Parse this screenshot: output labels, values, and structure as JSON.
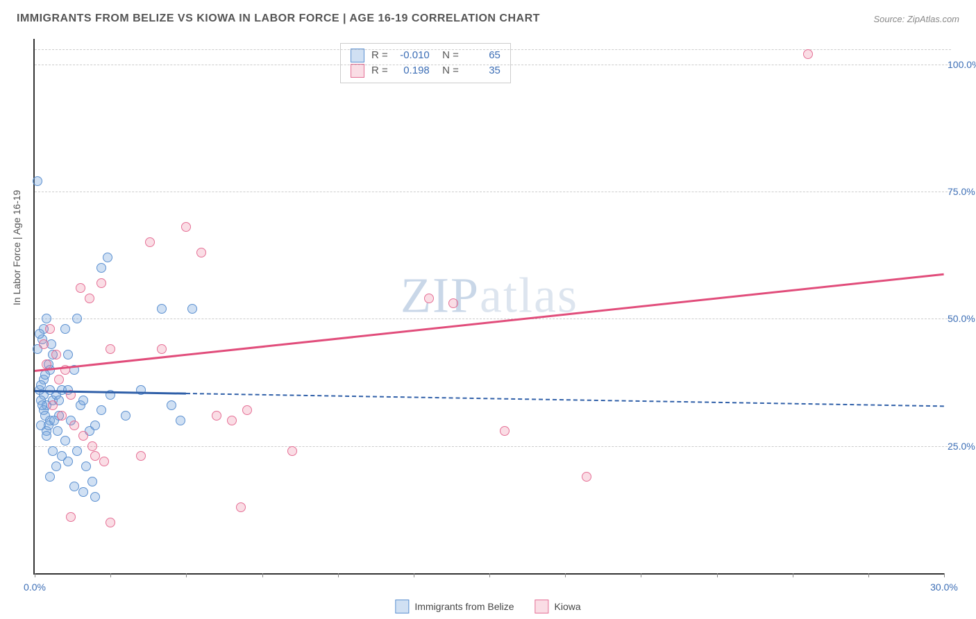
{
  "header": {
    "title": "IMMIGRANTS FROM BELIZE VS KIOWA IN LABOR FORCE | AGE 16-19 CORRELATION CHART",
    "source": "Source: ZipAtlas.com"
  },
  "watermark": {
    "prefix": "ZIP",
    "suffix": "atlas"
  },
  "chart": {
    "type": "scatter",
    "ylabel": "In Labor Force | Age 16-19",
    "background_color": "#ffffff",
    "grid_color": "#cccccc",
    "axis_color": "#333333",
    "label_color": "#3b6db5",
    "xlim": [
      0,
      30
    ],
    "ylim": [
      0,
      105
    ],
    "xticks": [
      0,
      2.5,
      5,
      7.5,
      10,
      12.5,
      15,
      17.5,
      20,
      22.5,
      25,
      27.5,
      30
    ],
    "xtick_labels": {
      "0": "0.0%",
      "30": "30.0%"
    },
    "yticks": [
      25,
      50,
      75,
      100
    ],
    "ytick_labels": {
      "25": "25.0%",
      "50": "50.0%",
      "75": "75.0%",
      "100": "100.0%"
    },
    "marker_radius": 7,
    "marker_border": 1.5,
    "series": [
      {
        "name": "Immigrants from Belize",
        "key": "blue",
        "fill": "rgba(120,165,220,0.35)",
        "stroke": "#5a8fd0",
        "R": "-0.010",
        "N": "65",
        "trend": {
          "x1": 0,
          "y1": 36,
          "x2_solid": 5,
          "x2_dash": 30,
          "y2": 33,
          "color": "#2f5fa8"
        },
        "points": [
          [
            0.1,
            77
          ],
          [
            0.3,
            35
          ],
          [
            0.2,
            34
          ],
          [
            0.4,
            33
          ],
          [
            0.15,
            36
          ],
          [
            0.3,
            32
          ],
          [
            0.5,
            30
          ],
          [
            0.2,
            29
          ],
          [
            0.4,
            28
          ],
          [
            0.6,
            34
          ],
          [
            0.1,
            44
          ],
          [
            0.25,
            46
          ],
          [
            0.5,
            40
          ],
          [
            0.3,
            38
          ],
          [
            0.7,
            35
          ],
          [
            0.8,
            31
          ],
          [
            0.4,
            27
          ],
          [
            0.6,
            24
          ],
          [
            0.9,
            23
          ],
          [
            1.1,
            22
          ],
          [
            0.7,
            21
          ],
          [
            0.5,
            19
          ],
          [
            1.3,
            17
          ],
          [
            1.6,
            16
          ],
          [
            2.0,
            15
          ],
          [
            1.2,
            30
          ],
          [
            1.5,
            33
          ],
          [
            1.8,
            28
          ],
          [
            2.2,
            32
          ],
          [
            1.0,
            48
          ],
          [
            1.4,
            50
          ],
          [
            1.1,
            43
          ],
          [
            1.3,
            40
          ],
          [
            2.5,
            35
          ],
          [
            3.0,
            31
          ],
          [
            2.2,
            60
          ],
          [
            2.4,
            62
          ],
          [
            4.8,
            30
          ],
          [
            4.5,
            33
          ],
          [
            4.2,
            52
          ],
          [
            5.2,
            52
          ],
          [
            3.5,
            36
          ],
          [
            0.2,
            37
          ],
          [
            0.35,
            39
          ],
          [
            0.45,
            41
          ],
          [
            0.55,
            45
          ],
          [
            0.3,
            48
          ],
          [
            0.4,
            50
          ],
          [
            0.15,
            47
          ],
          [
            0.6,
            43
          ],
          [
            0.5,
            36
          ],
          [
            0.8,
            34
          ],
          [
            0.9,
            36
          ],
          [
            0.25,
            33
          ],
          [
            0.35,
            31
          ],
          [
            0.45,
            29
          ],
          [
            0.65,
            30
          ],
          [
            0.75,
            28
          ],
          [
            1.0,
            26
          ],
          [
            1.4,
            24
          ],
          [
            1.7,
            21
          ],
          [
            1.9,
            18
          ],
          [
            1.1,
            36
          ],
          [
            1.6,
            34
          ],
          [
            2.0,
            29
          ]
        ]
      },
      {
        "name": "Kiowa",
        "key": "pink",
        "fill": "rgba(235,120,150,0.25)",
        "stroke": "#e56f95",
        "R": "0.198",
        "N": "35",
        "trend": {
          "x1": 0,
          "y1": 40,
          "x2_solid": 30,
          "x2_dash": 30,
          "y2": 59,
          "color": "#e14d7b"
        },
        "points": [
          [
            25.5,
            102
          ],
          [
            0.3,
            45
          ],
          [
            0.5,
            48
          ],
          [
            0.7,
            43
          ],
          [
            0.4,
            41
          ],
          [
            0.8,
            38
          ],
          [
            1.0,
            40
          ],
          [
            1.2,
            35
          ],
          [
            1.5,
            56
          ],
          [
            1.8,
            54
          ],
          [
            2.2,
            57
          ],
          [
            2.5,
            44
          ],
          [
            3.8,
            65
          ],
          [
            5.0,
            68
          ],
          [
            5.5,
            63
          ],
          [
            4.2,
            44
          ],
          [
            6.0,
            31
          ],
          [
            6.5,
            30
          ],
          [
            7.0,
            32
          ],
          [
            8.5,
            24
          ],
          [
            13.0,
            54
          ],
          [
            13.8,
            53
          ],
          [
            15.5,
            28
          ],
          [
            18.2,
            19
          ],
          [
            6.8,
            13
          ],
          [
            1.2,
            11
          ],
          [
            2.5,
            10
          ],
          [
            3.5,
            23
          ],
          [
            2.0,
            23
          ],
          [
            0.6,
            33
          ],
          [
            0.9,
            31
          ],
          [
            1.3,
            29
          ],
          [
            1.6,
            27
          ],
          [
            1.9,
            25
          ],
          [
            2.3,
            22
          ]
        ]
      }
    ],
    "bottom_legend": [
      {
        "label": "Immigrants from Belize",
        "fill": "rgba(120,165,220,0.35)",
        "stroke": "#5a8fd0"
      },
      {
        "label": "Kiowa",
        "fill": "rgba(235,120,150,0.25)",
        "stroke": "#e56f95"
      }
    ]
  }
}
